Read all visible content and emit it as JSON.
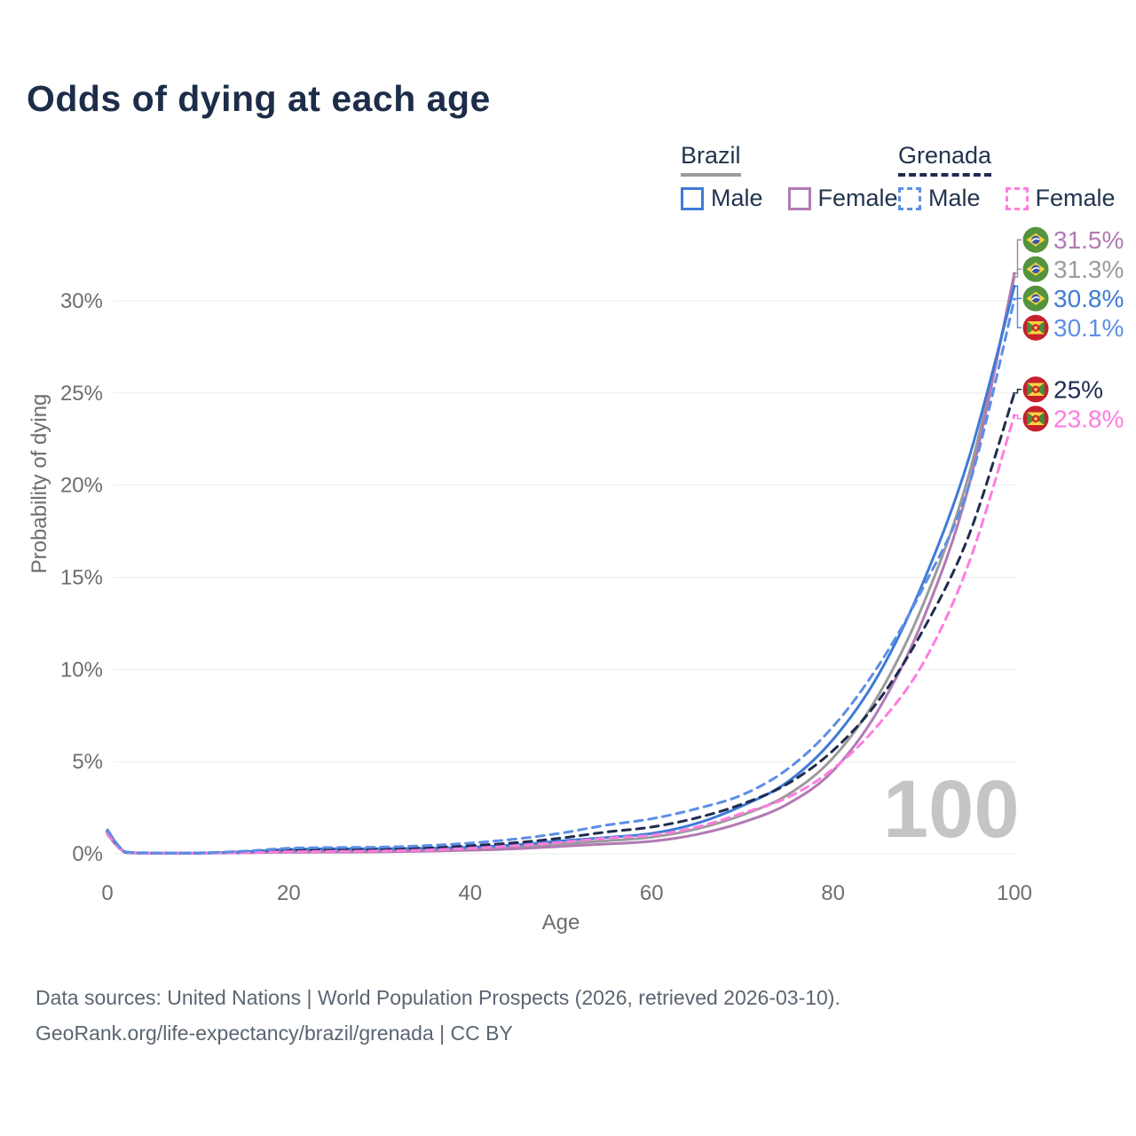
{
  "title": "Odds of dying at each age",
  "legend": {
    "groups": [
      {
        "label": "Brazil",
        "underline_color": "#9b9b9b",
        "underline_style": "solid",
        "items": [
          {
            "label": "Male",
            "color": "#3f7bd6",
            "dash": false
          },
          {
            "label": "Female",
            "color": "#b27ab3",
            "dash": false
          }
        ]
      },
      {
        "label": "Grenada",
        "underline_color": "#1e2c4f",
        "underline_style": "dashed",
        "items": [
          {
            "label": "Male",
            "color": "#5c8ee6",
            "dash": true
          },
          {
            "label": "Female",
            "color": "#ff7ce0",
            "dash": true
          }
        ]
      }
    ]
  },
  "watermark": "100",
  "footer": {
    "line1": "Data sources: United Nations | World Population Prospects (2026, retrieved 2026-03-10).",
    "line2": "GeoRank.org/life-expectancy/brazil/grenada | CC BY"
  },
  "chart_data": {
    "type": "line",
    "title": "Odds of dying at each age",
    "xlabel": "Age",
    "ylabel": "Probability of dying",
    "x_range": [
      0,
      100
    ],
    "y_range_percent": [
      0,
      30
    ],
    "grid": true,
    "legend_position": "top-right",
    "xticks": [
      0,
      20,
      40,
      60,
      80,
      100
    ],
    "ytick_values": [
      0,
      5,
      10,
      15,
      20,
      25,
      30
    ],
    "ytick_labels": [
      "0%",
      "5%",
      "10%",
      "15%",
      "20%",
      "25%",
      "30%"
    ],
    "ages": [
      0,
      2,
      5,
      10,
      15,
      20,
      25,
      30,
      35,
      40,
      45,
      50,
      55,
      60,
      65,
      70,
      75,
      80,
      85,
      90,
      95,
      100
    ],
    "series": [
      {
        "name": "Brazil Female",
        "country": "Brazil",
        "sex": "Female",
        "line": "solid",
        "color": "#b27ab3",
        "flag": "brazil",
        "end_label": "31.5%",
        "end_value": 31.5,
        "values": [
          1.05,
          0.06,
          0.03,
          0.03,
          0.05,
          0.08,
          0.09,
          0.1,
          0.14,
          0.19,
          0.27,
          0.4,
          0.53,
          0.68,
          1.05,
          1.7,
          2.7,
          4.5,
          7.8,
          12.8,
          20.0,
          31.5
        ]
      },
      {
        "name": "Brazil Both sexes",
        "country": "Brazil",
        "sex": "Both",
        "line": "solid",
        "color": "#9b9b9b",
        "flag": "brazil",
        "end_label": "31.3%",
        "end_value": 31.3,
        "values": [
          1.15,
          0.07,
          0.035,
          0.035,
          0.08,
          0.16,
          0.18,
          0.18,
          0.21,
          0.27,
          0.37,
          0.54,
          0.7,
          0.9,
          1.35,
          2.1,
          3.2,
          5.2,
          8.6,
          13.6,
          20.6,
          31.3
        ]
      },
      {
        "name": "Brazil Male",
        "country": "Brazil",
        "sex": "Male",
        "line": "solid",
        "color": "#3f7bd6",
        "flag": "brazil",
        "end_label": "30.8%",
        "end_value": 30.8,
        "values": [
          1.25,
          0.08,
          0.04,
          0.04,
          0.1,
          0.24,
          0.27,
          0.27,
          0.3,
          0.36,
          0.48,
          0.7,
          0.88,
          1.1,
          1.65,
          2.6,
          3.9,
          6.2,
          9.7,
          14.8,
          21.5,
          30.8
        ]
      },
      {
        "name": "Grenada Male",
        "country": "Grenada",
        "sex": "Male",
        "line": "dashed",
        "color": "#5c8ee6",
        "flag": "grenada",
        "end_label": "30.1%",
        "end_value": 30.1,
        "values": [
          1.3,
          0.1,
          0.05,
          0.05,
          0.14,
          0.3,
          0.34,
          0.36,
          0.44,
          0.58,
          0.8,
          1.12,
          1.55,
          1.9,
          2.45,
          3.2,
          4.6,
          6.9,
          10.2,
          14.5,
          20.0,
          30.1
        ]
      },
      {
        "name": "Grenada Both sexes",
        "country": "Grenada",
        "sex": "Both",
        "line": "dashed",
        "color": "#1e2c4f",
        "flag": "grenada",
        "end_label": "25%",
        "end_value": 25.0,
        "values": [
          1.2,
          0.09,
          0.045,
          0.045,
          0.12,
          0.2,
          0.23,
          0.25,
          0.32,
          0.44,
          0.6,
          0.85,
          1.18,
          1.45,
          1.95,
          2.7,
          3.8,
          5.6,
          8.3,
          12.2,
          17.3,
          25.0
        ]
      },
      {
        "name": "Grenada Female",
        "country": "Grenada",
        "sex": "Female",
        "line": "dashed",
        "color": "#ff7ce0",
        "flag": "grenada",
        "end_label": "23.8%",
        "end_value": 23.8,
        "values": [
          1.1,
          0.08,
          0.04,
          0.04,
          0.06,
          0.11,
          0.13,
          0.15,
          0.2,
          0.3,
          0.44,
          0.62,
          0.85,
          1.0,
          1.45,
          2.2,
          3.05,
          4.6,
          7.0,
          10.4,
          15.8,
          23.8
        ]
      }
    ]
  }
}
